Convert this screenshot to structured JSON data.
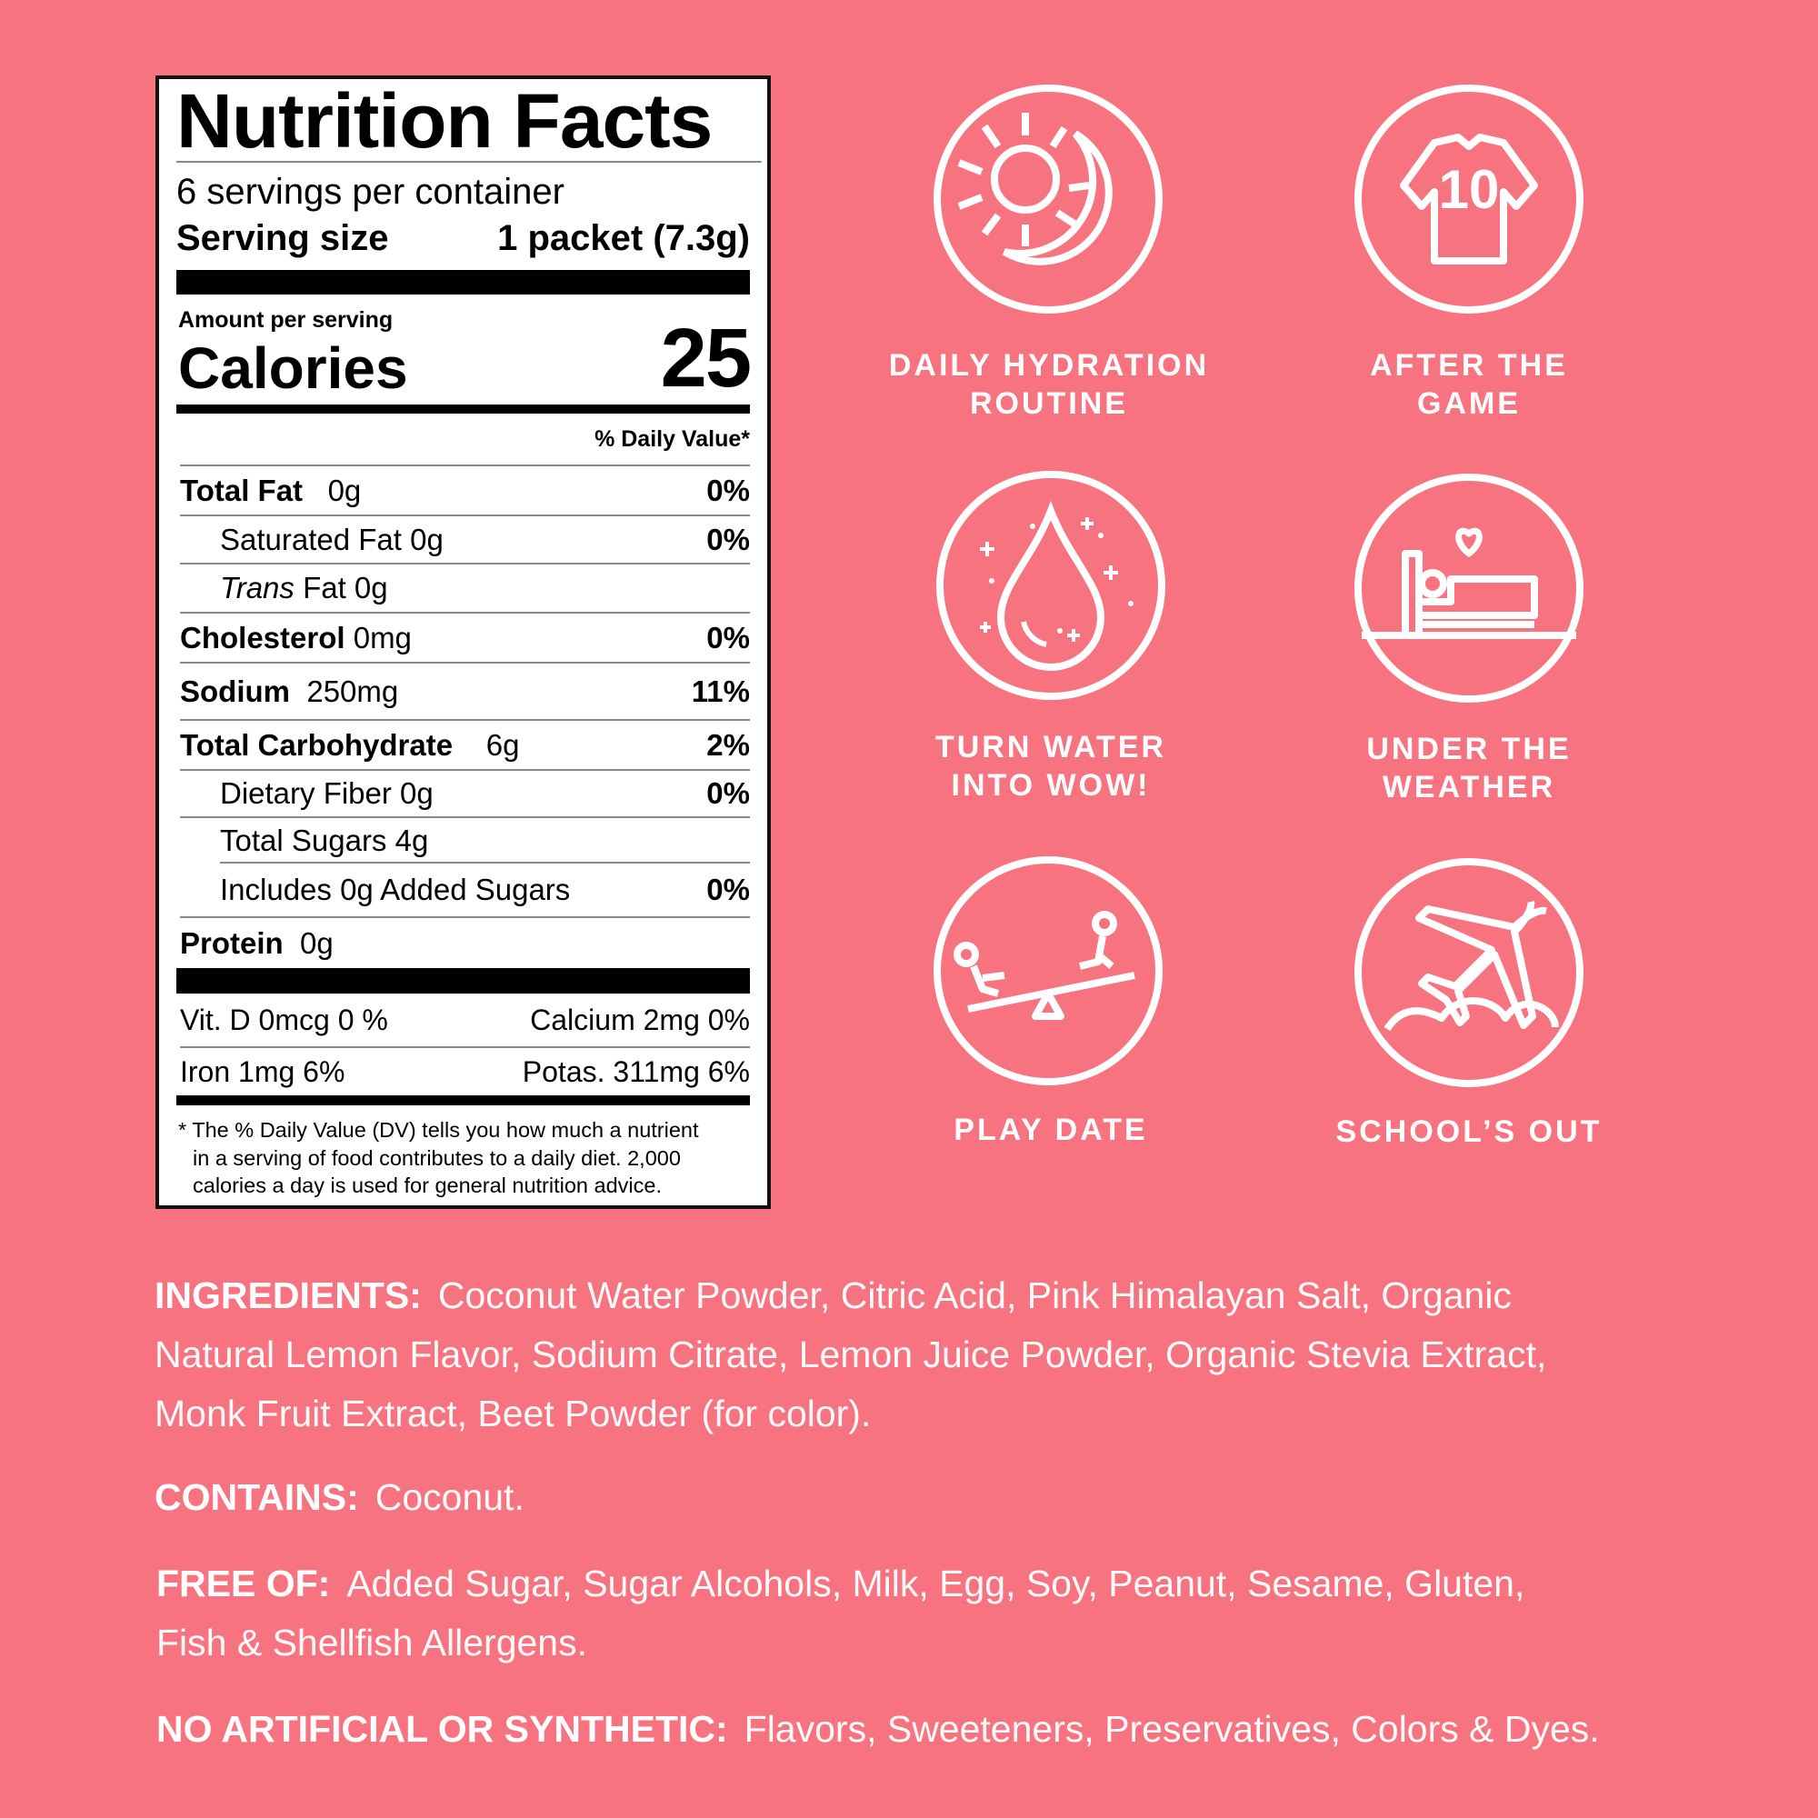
{
  "colors": {
    "background": "#F7737F",
    "label_bg": "#FFFFFF",
    "text": "#FFFFFF"
  },
  "nutrition": {
    "title": "Nutrition Facts",
    "servings_per_container": "6 servings per container",
    "serving_size_label": "Serving size",
    "serving_size_value": "1 packet (7.3g)",
    "amount_per_serving": "Amount per serving",
    "calories_label": "Calories",
    "calories_value": "25",
    "dv_header": "% Daily Value*",
    "rows": [
      {
        "name": "Total Fat",
        "amount": "0g",
        "dv": "0%"
      },
      {
        "name": "Saturated Fat 0g",
        "dv": "0%"
      },
      {
        "name_italic": "Trans",
        "name": " Fat 0g"
      },
      {
        "name": "Cholesterol",
        "amount": "0mg",
        "dv": "0%"
      },
      {
        "name": "Sodium",
        "amount": "250mg",
        "dv": "11%"
      },
      {
        "name": "Total Carbohydrate",
        "amount": "6g",
        "dv": "2%"
      },
      {
        "name": "Dietary Fiber 0g",
        "dv": "0%"
      },
      {
        "name": "Total Sugars 4g"
      },
      {
        "name": "Includes 0g Added Sugars",
        "dv": "0%"
      },
      {
        "name": "Protein",
        "amount": "0g"
      }
    ],
    "vitamins": {
      "vitd": "Vit. D 0mcg 0 %",
      "calcium": "Calcium 2mg 0%",
      "iron": "Iron 1mg 6%",
      "potassium": "Potas. 311mg 6%"
    },
    "footnote": [
      "* The % Daily Value (DV) tells you how much a nutrient",
      "in a serving of food contributes to a daily diet. 2,000",
      "calories a day is used for general nutrition advice."
    ]
  },
  "uses": [
    {
      "icon": "sun-moon-icon",
      "caption": [
        "DAILY HYDRATION",
        "ROUTINE"
      ]
    },
    {
      "icon": "jersey-icon",
      "caption": [
        "AFTER THE",
        "GAME"
      ],
      "jersey_number": "10"
    },
    {
      "icon": "water-drop-icon",
      "caption": [
        "TURN WATER",
        "INTO WOW!"
      ]
    },
    {
      "icon": "bed-icon",
      "caption": [
        "UNDER THE",
        "WEATHER"
      ]
    },
    {
      "icon": "seesaw-icon",
      "caption": [
        "PLAY DATE"
      ]
    },
    {
      "icon": "airplane-icon",
      "caption": [
        "SCHOOL’S OUT"
      ]
    }
  ],
  "ingredients": {
    "label": "INGREDIENTS:",
    "lines": [
      "Coconut Water Powder, Citric Acid, Pink Himalayan Salt, Organic",
      "Natural Lemon Flavor, Sodium Citrate, Lemon Juice Powder, Organic Stevia Extract,",
      "Monk Fruit Extract, Beet Powder (for color)."
    ]
  },
  "contains": {
    "label": "CONTAINS:",
    "text": "Coconut."
  },
  "free_of": {
    "label": "FREE OF:",
    "lines": [
      "Added Sugar, Sugar Alcohols, Milk, Egg, Soy, Peanut, Sesame, Gluten,",
      "Fish & Shellfish Allergens."
    ]
  },
  "no_artificial": {
    "label": "NO ARTIFICIAL OR SYNTHETIC:",
    "text": "Flavors, Sweeteners, Preservatives, Colors & Dyes."
  }
}
